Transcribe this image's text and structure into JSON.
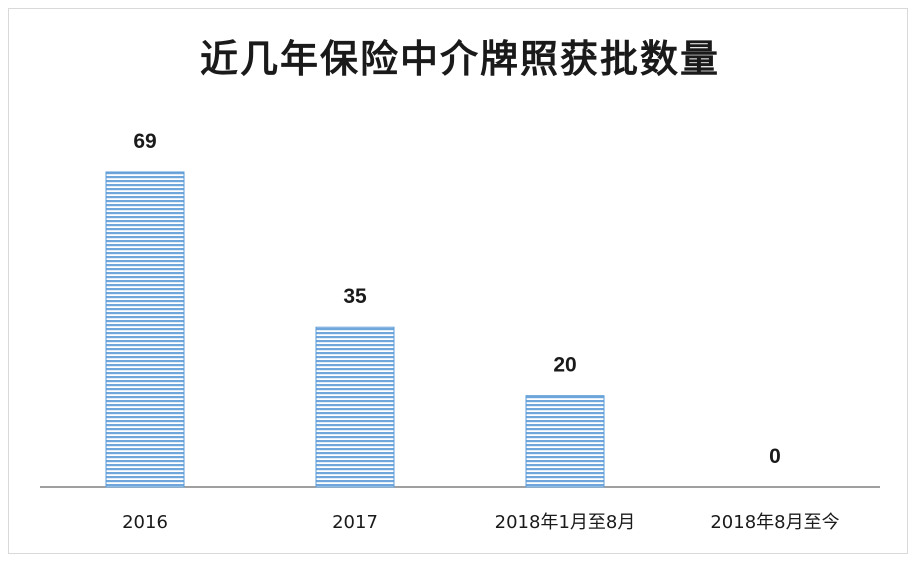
{
  "chart_data": {
    "type": "bar",
    "title": "近几年保险中介牌照获批数量",
    "categories": [
      "2016",
      "2017",
      "2018年1月至8月",
      "2018年8月至今"
    ],
    "values": [
      69,
      35,
      20,
      0
    ],
    "data_labels": [
      "69",
      "35",
      "20",
      "0"
    ],
    "xlabel": "",
    "ylabel": "",
    "ylim": [
      0,
      69
    ],
    "grid": false,
    "legend": "none",
    "bar_color": "#9dc3e6",
    "bar_stripe_color": "#5b9bd5"
  }
}
